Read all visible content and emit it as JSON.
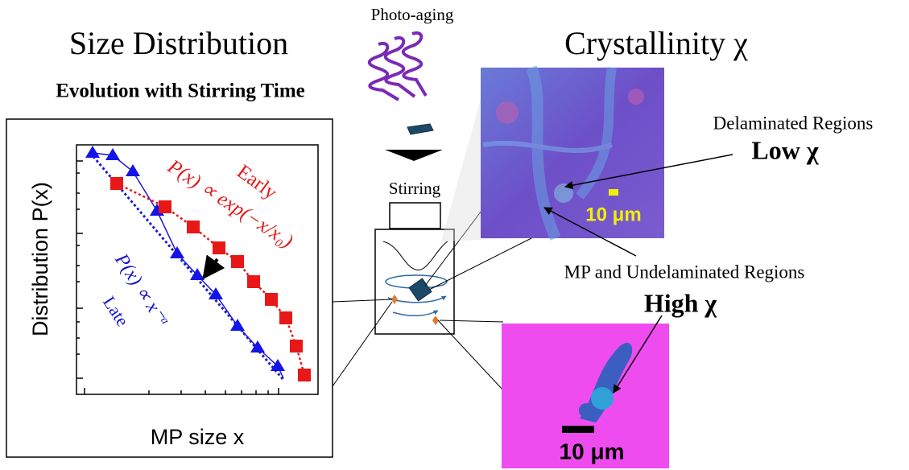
{
  "left_panel": {
    "title": "Size Distribution",
    "subtitle": "Evolution with Stirring Time",
    "plot": {
      "y_label": "Distribution P(x)",
      "x_label": "MP size x",
      "early_formula": "P(x) ∝ exp(−x/x₀)",
      "early_label": "Early",
      "late_formula": "P(x) ∝ x⁻ᵅ",
      "late_label": "Late"
    }
  },
  "center_panel": {
    "process_label": "Photo-aging",
    "stirring_label": "Stirring"
  },
  "right_panel": {
    "title": "Crystallinity χ",
    "top_image": {
      "region_label": "Delaminated Regions",
      "level_label": "Low χ",
      "scale_bar": "10 μm"
    },
    "middle_label": "MP and Undelaminated Regions",
    "bottom_image": {
      "level_label": "High χ",
      "scale_bar": "10 μm"
    }
  }
}
